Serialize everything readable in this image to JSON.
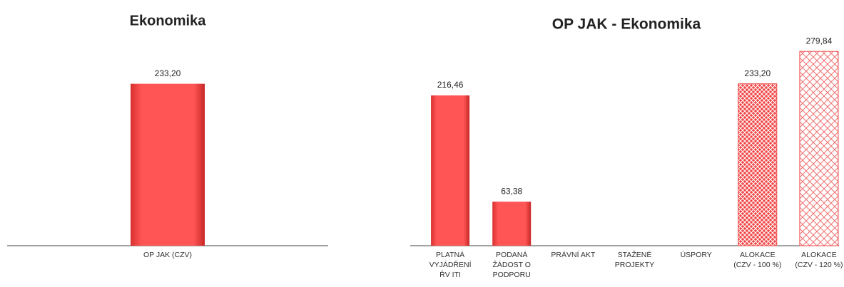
{
  "chart_data": [
    {
      "type": "bar",
      "title": "Ekonomika",
      "categories": [
        "OP JAK (CZV)"
      ],
      "values": [
        233.2
      ],
      "value_labels": [
        "233,20"
      ],
      "colors": [
        "#f04646"
      ],
      "hatched": [
        false
      ]
    },
    {
      "type": "bar",
      "title": "OP JAK - Ekonomika",
      "categories": [
        "PLATNÁ VYJÁDŘENÍ ŘV ITI",
        "PODANÁ ŽÁDOST O PODPORU",
        "PRÁVNÍ AKT",
        "STAŽENÉ PROJEKTY",
        "ÚSPORY",
        "ALOKACE (CZV - 100 %)",
        "ALOKACE (CZV - 120 %)"
      ],
      "values": [
        216.46,
        63.38,
        null,
        null,
        null,
        233.2,
        279.84
      ],
      "value_labels": [
        "216,46",
        "63,38",
        null,
        null,
        null,
        "233,20",
        "279,84"
      ],
      "colors": [
        "#f04646",
        "#f04646",
        "#f04646",
        "#f04646",
        "#f04646",
        "#f04646",
        "#f04646"
      ],
      "hatched": [
        false,
        false,
        false,
        false,
        false,
        true,
        true
      ]
    }
  ]
}
